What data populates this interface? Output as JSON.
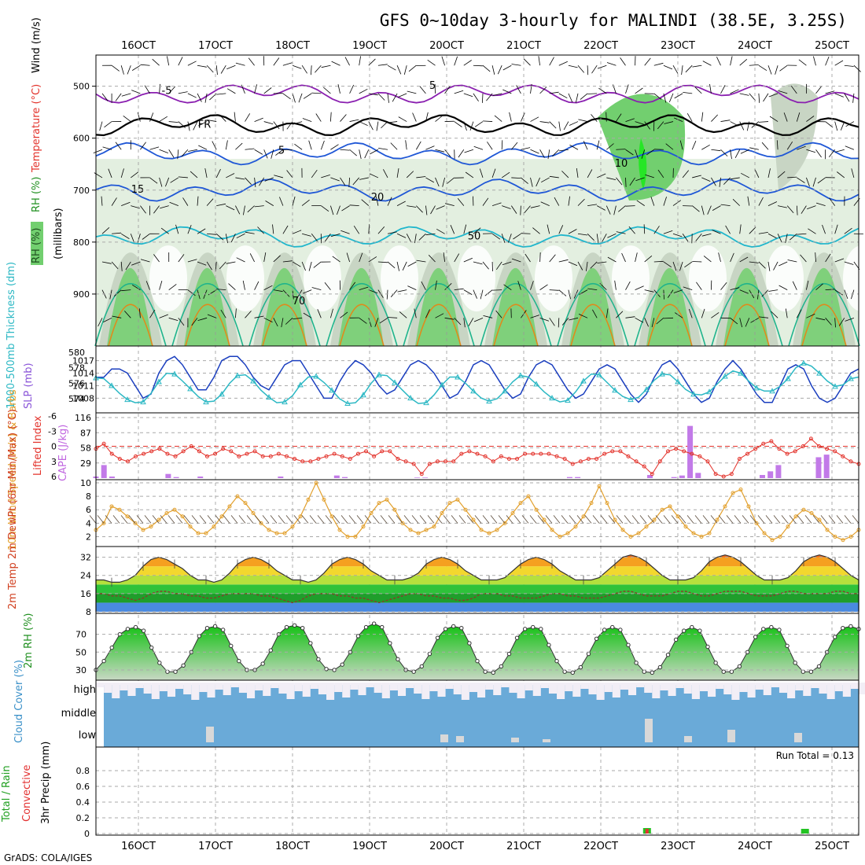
{
  "title": "GFS 0~10day 3-hourly for MALINDI (38.5E, 3.25S)",
  "credit": "GrADS: COLA/IGES",
  "colors": {
    "temp_contour": "#1f57d6",
    "temp_contour_warm": "#20b6cc",
    "freezing": "#000000",
    "neg_temp": "#8a1fb0",
    "rh_light": "#e3efe0",
    "rh_mid": "#c8d5c4",
    "rh_green": "#72cf6f",
    "rh_bright": "#26e626",
    "slp": "#1b3fbf",
    "thickness": "#2cb8c4",
    "lifted": "#e3322b",
    "cape": "#c27ae8",
    "wind10": "#e2a02d",
    "temp_fill": [
      "#f06a1c",
      "#f5a020",
      "#f3d72e",
      "#b5e03d",
      "#2ec23a",
      "#1f9e2b",
      "#4a8ae0"
    ],
    "rh2m": "#16b816",
    "cloud": "#6aaad8",
    "cloud_empty": "#f2eef6",
    "precip_total": "#23c323",
    "precip_conv": "#e33030"
  },
  "chart_data": [
    {
      "type": "area",
      "panel": "upper-air",
      "ylabel_parts": [
        {
          "text": "Wind (m/s)",
          "color": "#000000"
        },
        {
          "text": "Temperature (°C)",
          "color": "#e3322b"
        },
        {
          "text": "RH (%)",
          "color": "#1f8f1f"
        }
      ],
      "yaxis_unit_label": "(millibars)",
      "y_ticks": [
        500,
        600,
        700,
        800,
        900
      ],
      "ylim": [
        1000,
        440
      ],
      "x_dates": [
        "16OCT",
        "17OCT",
        "18OCT",
        "19OCT",
        "20OCT",
        "21OCT",
        "22OCT",
        "23OCT",
        "24OCT",
        "25OCT"
      ],
      "contour_labels": [
        {
          "text": "-5"
        },
        {
          "text": "5"
        },
        {
          "text": "FR"
        },
        {
          "text": "5"
        },
        {
          "text": "10"
        },
        {
          "text": "15"
        },
        {
          "text": "20"
        },
        {
          "text": "50"
        },
        {
          "text": "70"
        }
      ],
      "rh_legend": "RH (%)",
      "temp_levels": [
        {
          "label": "-5",
          "level_mb": 515
        },
        {
          "label": "FR",
          "level_mb": 575
        },
        {
          "label": "5",
          "level_mb": 630
        },
        {
          "label": "10",
          "level_mb": 700
        },
        {
          "label": "15",
          "level_mb": 790
        }
      ]
    },
    {
      "type": "line",
      "panel": "thickness-slp",
      "ylabel_left": "1000-500mb Thickness (dm)",
      "ylabel_right": "SLP (mb)",
      "left_ticks": [
        574,
        576,
        578,
        580
      ],
      "right_ticks": [
        1008,
        1011,
        1014,
        1017
      ],
      "series": [
        {
          "name": "SLP",
          "axis": "right",
          "values": [
            1013,
            1013,
            1015,
            1015,
            1014,
            1011,
            1008,
            1009,
            1014,
            1017,
            1018,
            1016,
            1013,
            1010,
            1010,
            1013,
            1017,
            1018,
            1018,
            1016,
            1013,
            1011,
            1010,
            1013,
            1016,
            1017,
            1017,
            1014,
            1011,
            1008,
            1008,
            1012,
            1015,
            1017,
            1016,
            1014,
            1011,
            1009,
            1010,
            1013,
            1016,
            1017,
            1016,
            1014,
            1011,
            1008,
            1009,
            1012,
            1016,
            1017,
            1016,
            1013,
            1010,
            1008,
            1009,
            1013,
            1016,
            1017,
            1016,
            1013,
            1010,
            1008,
            1009,
            1012,
            1015,
            1016,
            1015,
            1012,
            1009,
            1007,
            1009,
            1013,
            1016,
            1017,
            1015,
            1012,
            1009,
            1007,
            1008,
            1012,
            1015,
            1017,
            1015,
            1012,
            1009,
            1007,
            1007,
            1011,
            1015,
            1016,
            1015,
            1011,
            1008,
            1007,
            1008,
            1011,
            1014,
            1015
          ]
        },
        {
          "name": "Thickness",
          "axis": "left",
          "values": [
            576.7,
            576.6,
            575.7,
            574.7,
            573.9,
            573.5,
            573.6,
            574.7,
            576.2,
            577.3,
            577.2,
            576.3,
            575.3,
            574.3,
            573.6,
            573.7,
            574.6,
            576.0,
            577.0,
            577.1,
            576.3,
            575.1,
            574.2,
            573.5,
            573.6,
            574.4,
            575.8,
            576.8,
            576.9,
            576.1,
            575.1,
            574.0,
            573.4,
            573.5,
            574.5,
            576.0,
            577.1,
            577.0,
            576.1,
            575.1,
            574.1,
            573.4,
            573.5,
            574.5,
            575.8,
            576.8,
            576.8,
            576.0,
            575.0,
            574.1,
            573.7,
            574.0,
            575.0,
            576.2,
            577.0,
            576.8,
            575.9,
            574.9,
            574.1,
            573.6,
            573.8,
            574.9,
            576.3,
            577.2,
            577.1,
            576.1,
            575.1,
            574.3,
            573.9,
            574.2,
            575.2,
            576.4,
            577.2,
            577.1,
            576.2,
            575.2,
            574.6,
            574.5,
            574.9,
            575.9,
            576.9,
            577.6,
            577.3,
            576.3,
            575.4,
            575.0,
            575.0,
            575.6,
            576.6,
            578.0,
            578.6,
            578.2,
            577.3,
            576.3,
            575.6,
            575.8,
            576.6,
            576.8
          ]
        }
      ]
    },
    {
      "type": "bar",
      "panel": "stability",
      "ylabel_left": "Lifted Index",
      "ylabel_right": "CAPE (J/kg)",
      "li_ticks": [
        -6,
        -3,
        0,
        3,
        6
      ],
      "cape_ticks": [
        29,
        58,
        87,
        116
      ],
      "series": [
        {
          "name": "Lifted Index",
          "values": [
            0.5,
            -0.5,
            1.5,
            2.5,
            3.0,
            2.0,
            1.5,
            1.0,
            0.5,
            1.5,
            2.0,
            1.0,
            0.0,
            1.0,
            2.0,
            1.5,
            0.5,
            1.0,
            2.0,
            1.5,
            1.0,
            2.0,
            2.0,
            1.5,
            2.0,
            2.5,
            3.0,
            3.0,
            2.5,
            2.0,
            1.5,
            2.0,
            2.5,
            1.5,
            1.0,
            2.0,
            1.0,
            1.0,
            2.5,
            3.0,
            3.5,
            5.5,
            3.5,
            3.0,
            3.0,
            3.0,
            1.5,
            1.0,
            1.5,
            2.0,
            3.0,
            2.0,
            2.5,
            2.5,
            1.5,
            1.5,
            1.5,
            1.5,
            2.0,
            2.5,
            3.5,
            3.0,
            2.5,
            2.5,
            1.5,
            1.0,
            1.0,
            2.0,
            3.0,
            4.0,
            5.5,
            3.0,
            1.0,
            0.5,
            1.0,
            1.5,
            2.0,
            3.0,
            5.5,
            6.0,
            5.5,
            2.5,
            1.5,
            0.5,
            -0.5,
            -1.0,
            0.5,
            1.5,
            1.0,
            0.0,
            -1.5,
            0.0,
            0.5,
            1.0,
            2.0,
            3.0,
            3.5
          ]
        },
        {
          "name": "CAPE",
          "values": [
            3,
            25,
            3,
            0,
            0,
            0,
            0,
            0,
            0,
            8,
            2,
            0,
            0,
            3,
            0,
            0,
            0,
            0,
            0,
            0,
            0,
            0,
            0,
            3,
            0,
            0,
            0,
            0,
            0,
            0,
            5,
            2,
            0,
            0,
            0,
            0,
            0,
            0,
            0,
            0,
            1,
            1,
            0,
            0,
            0,
            0,
            0,
            0,
            0,
            0,
            0,
            0,
            0,
            0,
            0,
            0,
            0,
            0,
            0,
            2,
            2,
            0,
            0,
            0,
            0,
            0,
            0,
            0,
            0,
            6,
            0,
            0,
            2,
            5,
            100,
            10,
            0,
            0,
            0,
            0,
            0,
            0,
            0,
            6,
            13,
            25,
            0,
            0,
            0,
            0,
            40,
            45,
            0,
            0,
            0,
            0
          ]
        }
      ]
    },
    {
      "type": "line",
      "panel": "wind10m",
      "ylabel": "10m Wind Speed (m/s) & Barbs",
      "ylim": [
        1,
        10
      ],
      "y_ticks": [
        2,
        4,
        6,
        8,
        10
      ],
      "values": [
        3.0,
        4.0,
        6.5,
        6.0,
        5.0,
        4.0,
        3.0,
        3.5,
        4.5,
        5.5,
        6.0,
        5.0,
        3.5,
        2.5,
        2.5,
        3.5,
        5.0,
        6.5,
        8.0,
        7.0,
        5.5,
        4.0,
        3.0,
        2.5,
        2.5,
        3.5,
        5.0,
        7.5,
        10.0,
        7.5,
        5.0,
        3.0,
        2.0,
        2.0,
        3.5,
        5.5,
        7.0,
        7.5,
        6.0,
        4.0,
        3.0,
        2.5,
        3.0,
        3.5,
        5.5,
        7.0,
        7.5,
        6.0,
        4.5,
        3.0,
        2.5,
        3.0,
        4.0,
        5.5,
        7.0,
        8.0,
        6.0,
        4.5,
        3.0,
        2.0,
        2.5,
        3.5,
        5.0,
        7.0,
        9.5,
        7.0,
        4.5,
        3.0,
        2.0,
        2.5,
        3.5,
        4.5,
        6.0,
        6.5,
        5.0,
        3.5,
        2.5,
        2.0,
        2.5,
        4.5,
        6.5,
        8.5,
        9.0,
        6.5,
        4.0,
        2.5,
        1.5,
        2.0,
        3.5,
        5.0,
        6.0,
        5.5,
        4.5,
        3.0,
        2.0,
        1.5,
        2.0,
        3.0
      ]
    },
    {
      "type": "area",
      "panel": "temperature",
      "ylabel": "2m Temp 2m DewPt (6hr Min/Max) (°C)",
      "y_ticks": [
        8,
        16,
        24,
        32
      ],
      "extra_tick": "8",
      "ylim": [
        8,
        36
      ],
      "series": [
        {
          "name": "2m Temp",
          "values": [
            22,
            22,
            21,
            21,
            22,
            24,
            28,
            31,
            32,
            31,
            29,
            27,
            24,
            22,
            22,
            21,
            22,
            25,
            29,
            31,
            32,
            31,
            29,
            26,
            24,
            22,
            22,
            21,
            22,
            25,
            29,
            31,
            32,
            31,
            29,
            26,
            24,
            22,
            22,
            22,
            23,
            25,
            29,
            31,
            32,
            31,
            29,
            26,
            24,
            22,
            22,
            22,
            23,
            26,
            29,
            31,
            32,
            31,
            29,
            26,
            24,
            22,
            22,
            22,
            23,
            26,
            29,
            32,
            33,
            32,
            30,
            27,
            24,
            22,
            22,
            22,
            23,
            26,
            30,
            32,
            33,
            32,
            30,
            27,
            24,
            22,
            22,
            22,
            23,
            26,
            30,
            32,
            33,
            32,
            30,
            27,
            24,
            22
          ]
        },
        {
          "name": "2m DewPt",
          "values": [
            16,
            16,
            15,
            15,
            14,
            13,
            14,
            16,
            17,
            17,
            16,
            16,
            15,
            15,
            14,
            14,
            15,
            16,
            16,
            16,
            16,
            15,
            15,
            14,
            13,
            12,
            13,
            15,
            16,
            16,
            16,
            15,
            15,
            14,
            14,
            13,
            12,
            13,
            14,
            15,
            16,
            16,
            15,
            15,
            14,
            14,
            13,
            13,
            14,
            16,
            16,
            16,
            15,
            15,
            14,
            14,
            14,
            15,
            16,
            16,
            15,
            15,
            14,
            14,
            14,
            15,
            16,
            17,
            17,
            16,
            15,
            15,
            15,
            16,
            17,
            17,
            16,
            15,
            15,
            16,
            17,
            17,
            17,
            16,
            15,
            15,
            15,
            16,
            17,
            17,
            16,
            16,
            16,
            16,
            17,
            17,
            16,
            16
          ]
        }
      ]
    },
    {
      "type": "area",
      "panel": "rh2m",
      "ylabel": "2m RH (%)",
      "y_ticks": [
        30,
        50,
        70
      ],
      "ylim": [
        22,
        90
      ],
      "values": [
        30,
        40,
        55,
        70,
        76,
        78,
        74,
        55,
        38,
        28,
        28,
        35,
        50,
        68,
        77,
        79,
        75,
        57,
        40,
        30,
        30,
        37,
        52,
        70,
        78,
        80,
        77,
        60,
        42,
        31,
        30,
        36,
        50,
        68,
        78,
        82,
        78,
        60,
        42,
        30,
        28,
        34,
        48,
        66,
        76,
        79,
        77,
        60,
        40,
        28,
        27,
        34,
        48,
        66,
        76,
        78,
        76,
        58,
        40,
        28,
        27,
        33,
        48,
        65,
        75,
        78,
        75,
        58,
        38,
        28,
        27,
        33,
        47,
        64,
        74,
        78,
        74,
        56,
        38,
        28,
        28,
        34,
        50,
        67,
        76,
        78,
        75,
        57,
        38,
        28,
        28,
        34,
        50,
        67,
        77,
        79,
        76
      ]
    },
    {
      "type": "bar",
      "panel": "cloud-cover",
      "ylabel": "Cloud Cover (%)",
      "categories": [
        "high",
        "middle",
        "low"
      ]
    },
    {
      "type": "bar",
      "panel": "precip",
      "ylabel_total": "Total / Rain",
      "ylabel_conv": "Convective",
      "ylabel_axis": "3hr Precip (mm)",
      "y_ticks": [
        0,
        0.2,
        0.4,
        0.6,
        0.8
      ],
      "ylim": [
        0,
        1.0
      ],
      "run_total_label": "Run Total = 0.13",
      "events": [
        {
          "date_index": 6.6,
          "total": 0.07,
          "conv": 0.06
        },
        {
          "date_index": 8.65,
          "total": 0.06,
          "conv": 0.0
        }
      ]
    }
  ]
}
